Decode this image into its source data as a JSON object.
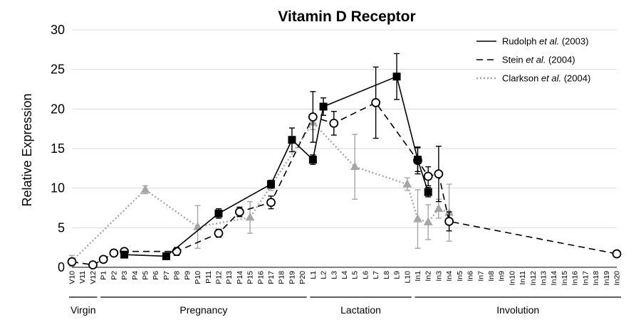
{
  "chart_data": {
    "type": "line",
    "title": "Vitamin D Receptor",
    "ylabel": "Relative Expression",
    "xlabel": "",
    "ylim": [
      0,
      30
    ],
    "yticks": [
      0,
      5,
      10,
      15,
      20,
      25,
      30
    ],
    "grid": true,
    "categories": [
      "V10",
      "V11",
      "V12",
      "P1",
      "P2",
      "P3",
      "P4",
      "P5",
      "P6",
      "P7",
      "P8",
      "P9",
      "P10",
      "P11",
      "P12",
      "P13",
      "P14",
      "P15",
      "P16",
      "P17",
      "P18",
      "P19",
      "P20",
      "L1",
      "L2",
      "L3",
      "L4",
      "L5",
      "L6",
      "L7",
      "L8",
      "L9",
      "L10",
      "In1",
      "In2",
      "In3",
      "In4",
      "In5",
      "In6",
      "In7",
      "In8",
      "In9",
      "In10",
      "In11",
      "In12",
      "In13",
      "In14",
      "In15",
      "In16",
      "In17",
      "In18",
      "In19",
      "In20"
    ],
    "stages": [
      {
        "label": "Virgin",
        "from": "V10",
        "to": "V12"
      },
      {
        "label": "Pregnancy",
        "from": "P1",
        "to": "P20"
      },
      {
        "label": "Lactation",
        "from": "L1",
        "to": "L10"
      },
      {
        "label": "Involution",
        "from": "In1",
        "to": "In20"
      }
    ],
    "series": [
      {
        "name": "Stein et al. (2004)",
        "name_parts": [
          "Stein ",
          "et al.",
          " (2004)"
        ],
        "style": "dashed",
        "color": "#000000",
        "marker": "open-circle",
        "points": [
          {
            "x": "V10",
            "y": 0.7,
            "err": 0.4
          },
          {
            "x": "V12",
            "y": 0.3,
            "err": 0.2
          },
          {
            "x": "P1",
            "y": 1.0,
            "err": 0.2
          },
          {
            "x": "P2",
            "y": 1.8,
            "err": 0.3
          },
          {
            "x": "P3",
            "y": 2.0,
            "err": 0.3
          },
          {
            "x": "P8",
            "y": 2.0,
            "err": 0.5
          },
          {
            "x": "P12",
            "y": 4.3,
            "err": 0.5
          },
          {
            "x": "P14",
            "y": 7.0,
            "err": 0.6
          },
          {
            "x": "P17",
            "y": 8.2,
            "err": 0.8
          },
          {
            "x": "L1",
            "y": 19.0,
            "err": 3.2
          },
          {
            "x": "L3",
            "y": 18.2,
            "err": 1.5
          },
          {
            "x": "L7",
            "y": 20.8,
            "err": 4.5
          },
          {
            "x": "In1",
            "y": 13.5,
            "err": 1.7
          },
          {
            "x": "In2",
            "y": 11.5,
            "err": 1.2
          },
          {
            "x": "In3",
            "y": 11.8,
            "err": 3.5
          },
          {
            "x": "In4",
            "y": 5.8,
            "err": 1.2
          },
          {
            "x": "In20",
            "y": 1.7,
            "err": 0.3
          }
        ]
      },
      {
        "name": "Rudolph et al. (2003)",
        "name_parts": [
          "Rudolph ",
          "et al.",
          " (2003)"
        ],
        "style": "solid",
        "color": "#000000",
        "marker": "filled-square",
        "points": [
          {
            "x": "P3",
            "y": 1.6,
            "err": 0.2
          },
          {
            "x": "P7",
            "y": 1.4,
            "err": 0.3
          },
          {
            "x": "P12",
            "y": 6.8,
            "err": 0.6
          },
          {
            "x": "P17",
            "y": 10.5,
            "err": 0.5
          },
          {
            "x": "P19",
            "y": 16.1,
            "err": 1.5
          },
          {
            "x": "L1",
            "y": 13.6,
            "err": 0.6
          },
          {
            "x": "L2",
            "y": 20.3,
            "err": 1.1
          },
          {
            "x": "L9",
            "y": 24.1,
            "err": 2.9
          },
          {
            "x": "In1",
            "y": 13.6,
            "err": 1.5
          },
          {
            "x": "In2",
            "y": 9.5,
            "err": 0.6
          }
        ]
      },
      {
        "name": "Clarkson et al. (2004)",
        "name_parts": [
          "Clarkson ",
          "et al.",
          " (2004)"
        ],
        "style": "dotted",
        "color": "#a6a6a6",
        "marker": "filled-triangle",
        "points": [
          {
            "x": "V10",
            "y": 0.8,
            "err": 0.7
          },
          {
            "x": "P5",
            "y": 9.8,
            "err": 0.5
          },
          {
            "x": "P10",
            "y": 5.1,
            "err": 2.7
          },
          {
            "x": "P15",
            "y": 6.3,
            "err": 2.0
          },
          {
            "x": "P17",
            "y": 10.3,
            "err": 0.6
          },
          {
            "x": "L1",
            "y": 18.3,
            "err": 0.9
          },
          {
            "x": "L5",
            "y": 12.7,
            "err": 4.1
          },
          {
            "x": "L10",
            "y": 10.5,
            "err": 0.8
          },
          {
            "x": "In1",
            "y": 6.1,
            "err": 3.7
          },
          {
            "x": "In2",
            "y": 5.7,
            "err": 2.2
          },
          {
            "x": "In3",
            "y": 7.4,
            "err": 1.2
          },
          {
            "x": "In4",
            "y": 6.9,
            "err": 3.6
          }
        ]
      }
    ]
  }
}
